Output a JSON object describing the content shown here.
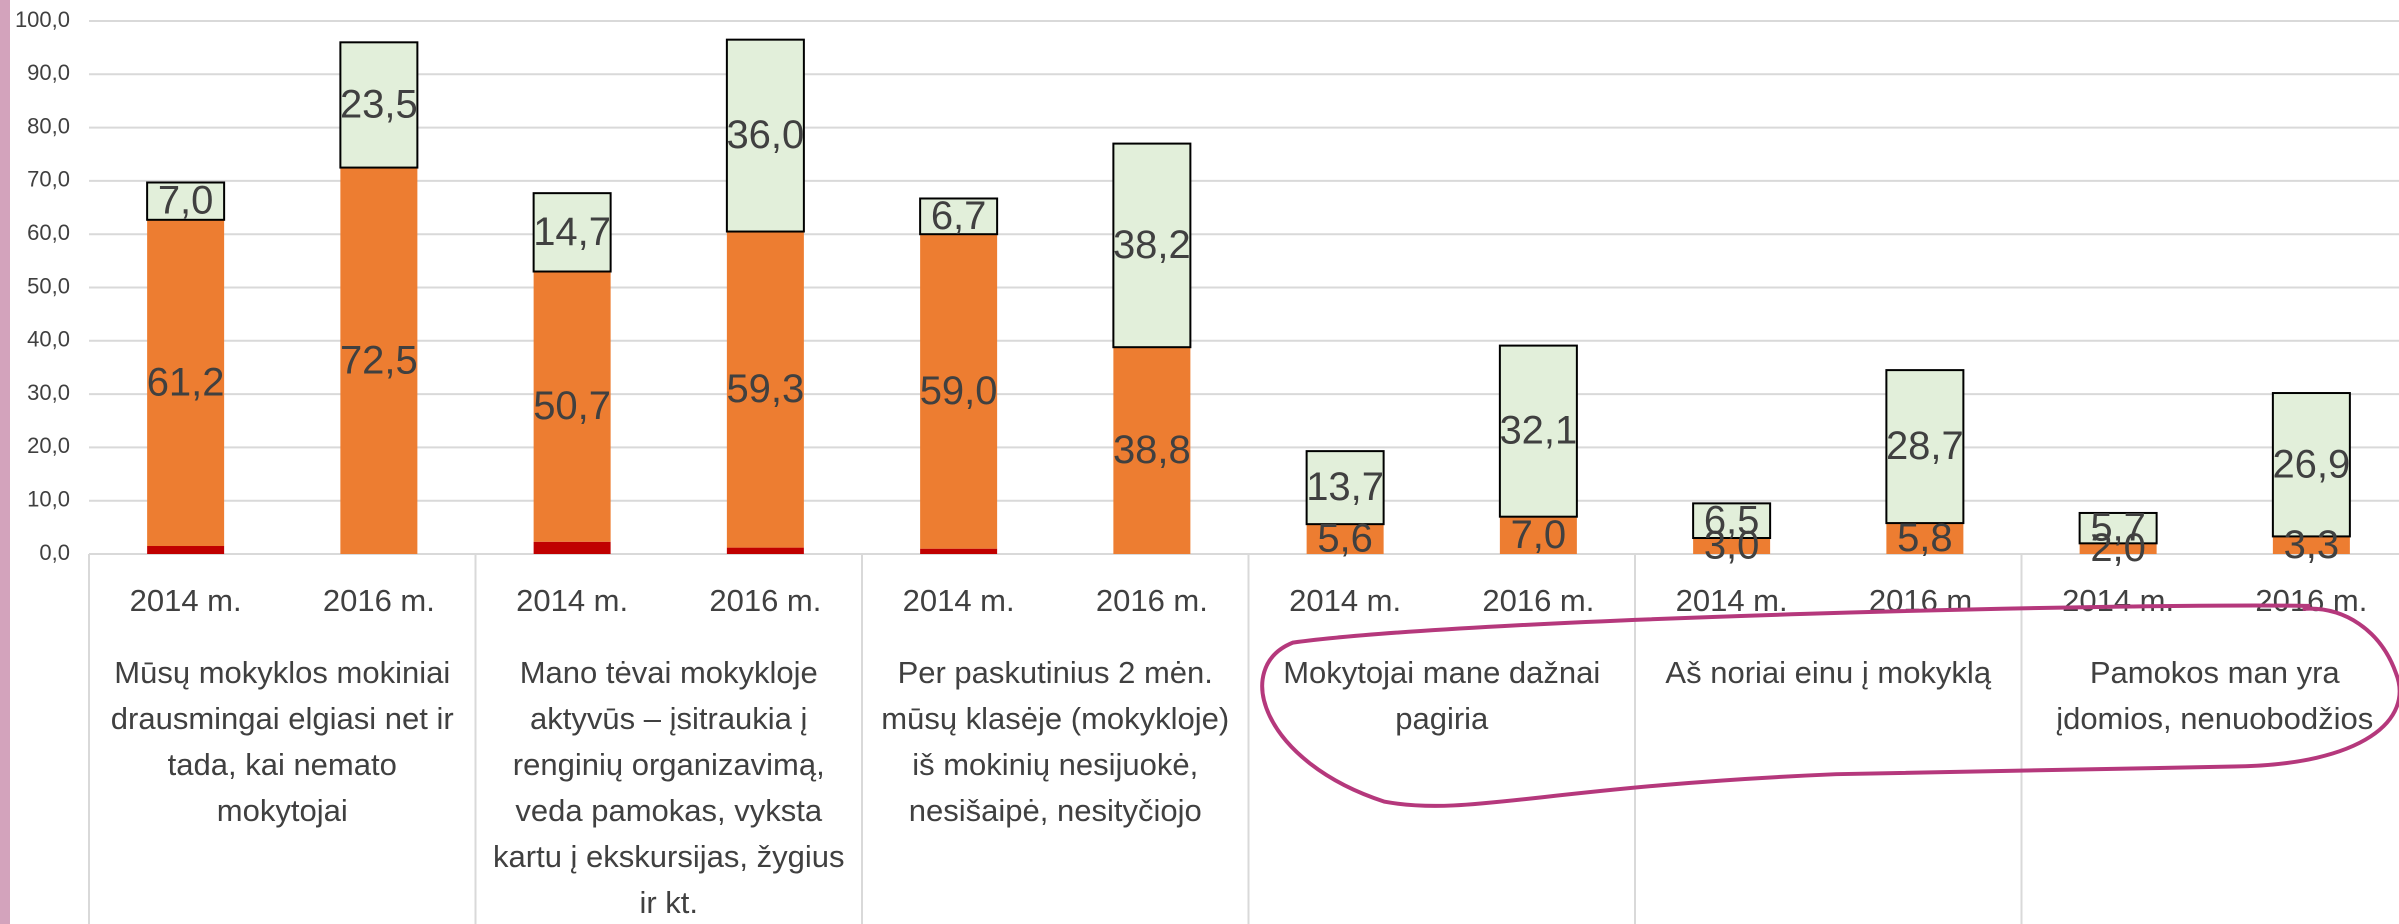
{
  "chart_data": {
    "type": "stacked_bar",
    "categories": [
      "2014 m.",
      "2016 m.",
      "2014 m.",
      "2016 m.",
      "2014 m.",
      "2016 m.",
      "2014 m.",
      "2016 m.",
      "2014 m.",
      "2016 m.",
      "2014 m.",
      "2016 m."
    ],
    "groups": [
      [
        "Mūsų mokyklos mokiniai",
        "drausmingai elgiasi net ir",
        "tada, kai nemato",
        "mokytojai"
      ],
      [
        "Mano tėvai mokykloje",
        "aktyvūs – įsitraukia į",
        "renginių organizavimą,",
        "veda pamokas, vyksta",
        "kartu į ekskursijas, žygius",
        "ir kt."
      ],
      [
        "Per paskutinius 2 mėn.",
        "mūsų klasėje (mokykloje)",
        "iš mokinių nesijuokė,",
        "nesišaipė, nesityčiojo"
      ],
      [
        "Mokytojai mane dažnai",
        "pagiria"
      ],
      [
        "Aš noriai einu į mokyklą"
      ],
      [
        "Pamokos man yra",
        "įdomios, nenuobodžios"
      ]
    ],
    "series": [
      {
        "color": "#c00000",
        "values": [
          1.5,
          0,
          2.3,
          1.2,
          1.0,
          0,
          0,
          0,
          0,
          0,
          0,
          0
        ]
      },
      {
        "color": "#ed7d31",
        "values": [
          61.2,
          72.5,
          50.7,
          59.3,
          59.0,
          38.8,
          5.6,
          7.0,
          3.0,
          5.8,
          2.0,
          3.3
        ],
        "value_labels": [
          "61,2",
          "72,5",
          "50,7",
          "59,3",
          "59,0",
          "38,8",
          "5,6",
          "7,0",
          "3,0",
          "5,8",
          "2,0",
          "3,3"
        ]
      },
      {
        "color": "#e2efda",
        "values": [
          7.0,
          23.5,
          14.7,
          36.0,
          6.7,
          38.2,
          13.7,
          32.1,
          6.5,
          28.7,
          5.7,
          26.9
        ],
        "value_labels": [
          "7,0",
          "23,5",
          "14,7",
          "36,0",
          "6,7",
          "38,2",
          "13,7",
          "32,1",
          "6,5",
          "28,7",
          "5,7",
          "26,9"
        ]
      }
    ],
    "ylim": [
      0,
      100
    ],
    "yticks": [
      {
        "value": 0,
        "label": "0,0"
      },
      {
        "value": 10,
        "label": "10,0"
      },
      {
        "value": 20,
        "label": "20,0"
      },
      {
        "value": 30,
        "label": "30,0"
      },
      {
        "value": 40,
        "label": "40,0"
      },
      {
        "value": 50,
        "label": "50,0"
      },
      {
        "value": 60,
        "label": "60,0"
      },
      {
        "value": 70,
        "label": "70,0"
      },
      {
        "value": 80,
        "label": "80,0"
      },
      {
        "value": 90,
        "label": "90,0"
      },
      {
        "value": 100,
        "label": "100,0"
      }
    ],
    "grid": true
  }
}
